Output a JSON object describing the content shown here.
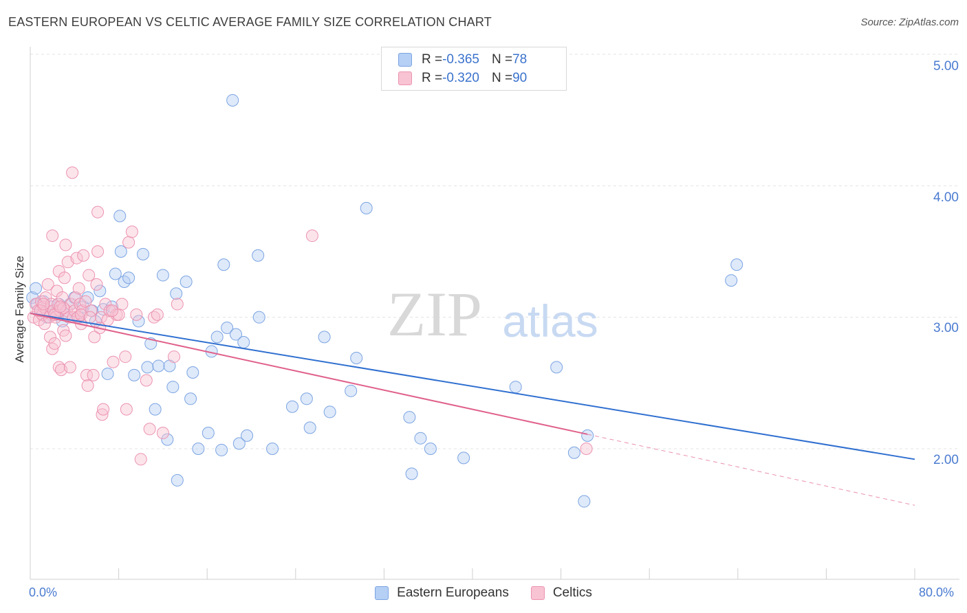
{
  "header": {
    "title": "EASTERN EUROPEAN VS CELTIC AVERAGE FAMILY SIZE CORRELATION CHART",
    "source": "Source: ZipAtlas.com"
  },
  "watermark": {
    "zip": "ZIP",
    "atlas": "atlas"
  },
  "stats": [
    {
      "r_label": "R = ",
      "r_value": "-0.365",
      "n_label": "N = ",
      "n_value": "78",
      "color": "#b5cff5"
    },
    {
      "r_label": "R = ",
      "r_value": "-0.320",
      "n_label": "N = ",
      "n_value": "90",
      "color": "#f8c3d3"
    }
  ],
  "legend": {
    "eastern": "Eastern Europeans",
    "celtic": "Celtics"
  },
  "colors": {
    "blue_line": "#2f6fd0",
    "pink_line": "#e0608a",
    "tick_text": "#4a7bd0"
  },
  "chart_data": {
    "type": "scatter",
    "title": "EASTERN EUROPEAN VS CELTIC AVERAGE FAMILY SIZE CORRELATION CHART",
    "xlabel": "",
    "ylabel": "Average Family Size",
    "xlim": [
      0,
      80
    ],
    "ylim": [
      1.0,
      5.15
    ],
    "x_tick_labels": [
      "0.0%",
      "80.0%"
    ],
    "y_ticks": [
      2.0,
      3.0,
      4.0,
      5.0
    ],
    "y_tick_labels": [
      "2.00",
      "3.00",
      "4.00",
      "5.00"
    ],
    "grid": "horizontal dashed",
    "legend_position": "bottom-center",
    "series": [
      {
        "name": "Eastern Europeans",
        "color": "#7ba4e2",
        "points": [
          [
            0.2,
            3.15
          ],
          [
            0.6,
            3.1
          ],
          [
            0.9,
            3.05
          ],
          [
            1.2,
            3.12
          ],
          [
            1.5,
            3.0
          ],
          [
            1.9,
            3.08
          ],
          [
            2.3,
            3.04
          ],
          [
            2.6,
            3.1
          ],
          [
            2.9,
            2.97
          ],
          [
            3.2,
            3.02
          ],
          [
            3.6,
            3.1
          ],
          [
            4.0,
            3.15
          ],
          [
            4.4,
            3.0
          ],
          [
            4.8,
            3.08
          ],
          [
            5.2,
            3.15
          ],
          [
            5.6,
            3.05
          ],
          [
            5.9,
            2.97
          ],
          [
            6.3,
            3.2
          ],
          [
            6.6,
            3.06
          ],
          [
            7.0,
            2.57
          ],
          [
            7.4,
            3.08
          ],
          [
            7.7,
            3.33
          ],
          [
            8.1,
            3.77
          ],
          [
            8.5,
            3.27
          ],
          [
            8.2,
            3.5
          ],
          [
            8.9,
            3.3
          ],
          [
            9.4,
            2.56
          ],
          [
            9.8,
            2.97
          ],
          [
            10.2,
            3.48
          ],
          [
            10.6,
            2.62
          ],
          [
            10.9,
            2.8
          ],
          [
            11.3,
            2.3
          ],
          [
            11.6,
            2.63
          ],
          [
            12.0,
            3.32
          ],
          [
            12.4,
            2.07
          ],
          [
            12.6,
            2.63
          ],
          [
            12.9,
            2.47
          ],
          [
            13.2,
            3.18
          ],
          [
            13.3,
            1.76
          ],
          [
            14.1,
            3.27
          ],
          [
            14.5,
            2.38
          ],
          [
            14.7,
            2.58
          ],
          [
            15.2,
            2.0
          ],
          [
            16.1,
            2.12
          ],
          [
            16.4,
            2.74
          ],
          [
            16.9,
            2.85
          ],
          [
            17.3,
            1.99
          ],
          [
            17.5,
            3.4
          ],
          [
            17.8,
            2.92
          ],
          [
            18.3,
            4.65
          ],
          [
            18.6,
            2.87
          ],
          [
            18.9,
            2.04
          ],
          [
            19.3,
            2.81
          ],
          [
            19.6,
            2.1
          ],
          [
            20.6,
            3.47
          ],
          [
            20.7,
            3.0
          ],
          [
            21.9,
            2.0
          ],
          [
            23.7,
            2.32
          ],
          [
            25.0,
            2.38
          ],
          [
            25.3,
            2.16
          ],
          [
            26.6,
            2.85
          ],
          [
            27.1,
            2.28
          ],
          [
            29.0,
            2.44
          ],
          [
            29.5,
            2.69
          ],
          [
            30.4,
            3.83
          ],
          [
            34.3,
            2.24
          ],
          [
            34.5,
            1.81
          ],
          [
            35.3,
            2.08
          ],
          [
            36.2,
            2.0
          ],
          [
            39.2,
            1.93
          ],
          [
            43.9,
            2.47
          ],
          [
            47.6,
            2.62
          ],
          [
            49.2,
            1.97
          ],
          [
            50.1,
            1.6
          ],
          [
            50.4,
            2.1
          ],
          [
            63.4,
            3.28
          ],
          [
            63.9,
            3.4
          ],
          [
            0.5,
            3.22
          ]
        ],
        "trend": {
          "x": [
            0,
            80
          ],
          "y": [
            3.03,
            1.92
          ]
        }
      },
      {
        "name": "Celtics",
        "color": "#ec93b0",
        "points": [
          [
            0.3,
            3.0
          ],
          [
            0.5,
            3.1
          ],
          [
            0.7,
            3.05
          ],
          [
            0.8,
            2.98
          ],
          [
            1.0,
            3.12
          ],
          [
            1.1,
            3.02
          ],
          [
            1.2,
            3.08
          ],
          [
            1.3,
            2.95
          ],
          [
            1.4,
            3.15
          ],
          [
            1.5,
            3.05
          ],
          [
            1.6,
            3.25
          ],
          [
            1.7,
            3.0
          ],
          [
            1.8,
            2.85
          ],
          [
            1.9,
            3.1
          ],
          [
            2.0,
            2.76
          ],
          [
            2.0,
            3.62
          ],
          [
            2.1,
            3.05
          ],
          [
            2.2,
            2.8
          ],
          [
            2.3,
            3.0
          ],
          [
            2.4,
            3.2
          ],
          [
            2.5,
            3.1
          ],
          [
            2.6,
            2.62
          ],
          [
            2.6,
            3.35
          ],
          [
            2.7,
            3.05
          ],
          [
            2.8,
            2.6
          ],
          [
            2.9,
            3.15
          ],
          [
            3.0,
            2.9
          ],
          [
            3.1,
            3.3
          ],
          [
            3.2,
            2.86
          ],
          [
            3.2,
            3.55
          ],
          [
            3.3,
            3.05
          ],
          [
            3.4,
            3.42
          ],
          [
            3.5,
            3.0
          ],
          [
            3.6,
            2.62
          ],
          [
            3.7,
            3.1
          ],
          [
            3.8,
            4.1
          ],
          [
            3.9,
            3.0
          ],
          [
            4.0,
            3.05
          ],
          [
            4.1,
            3.15
          ],
          [
            4.2,
            3.45
          ],
          [
            4.3,
            3.0
          ],
          [
            4.4,
            3.22
          ],
          [
            4.5,
            3.1
          ],
          [
            4.6,
            2.95
          ],
          [
            4.7,
            3.05
          ],
          [
            4.8,
            3.47
          ],
          [
            5.0,
            3.12
          ],
          [
            5.1,
            2.56
          ],
          [
            5.2,
            2.48
          ],
          [
            5.3,
            3.32
          ],
          [
            5.5,
            3.05
          ],
          [
            5.7,
            2.56
          ],
          [
            5.8,
            2.85
          ],
          [
            6.0,
            3.25
          ],
          [
            6.1,
            3.8
          ],
          [
            6.1,
            3.5
          ],
          [
            6.3,
            2.92
          ],
          [
            6.4,
            3.0
          ],
          [
            6.5,
            2.26
          ],
          [
            6.6,
            2.3
          ],
          [
            6.8,
            3.1
          ],
          [
            7.0,
            2.98
          ],
          [
            7.2,
            3.05
          ],
          [
            7.5,
            2.66
          ],
          [
            7.8,
            3.02
          ],
          [
            8.0,
            3.02
          ],
          [
            8.3,
            3.1
          ],
          [
            8.6,
            2.7
          ],
          [
            8.7,
            2.3
          ],
          [
            8.9,
            3.57
          ],
          [
            9.2,
            3.65
          ],
          [
            9.6,
            3.02
          ],
          [
            10.0,
            1.92
          ],
          [
            10.5,
            2.52
          ],
          [
            10.8,
            2.15
          ],
          [
            11.2,
            3.0
          ],
          [
            11.5,
            3.02
          ],
          [
            12.0,
            2.12
          ],
          [
            13.0,
            2.7
          ],
          [
            13.3,
            3.1
          ],
          [
            25.5,
            3.62
          ],
          [
            50.3,
            2.0
          ],
          [
            0.9,
            3.05
          ],
          [
            1.2,
            3.1
          ],
          [
            2.2,
            3.02
          ],
          [
            3.0,
            3.07
          ],
          [
            4.6,
            3.02
          ],
          [
            5.4,
            3.0
          ],
          [
            7.4,
            3.05
          ],
          [
            2.7,
            3.08
          ]
        ],
        "trend": {
          "x": [
            0,
            50.4
          ],
          "y": [
            3.03,
            2.11
          ]
        },
        "trend_dashed": {
          "x": [
            50.4,
            80
          ],
          "y": [
            2.11,
            1.57
          ]
        }
      }
    ]
  }
}
